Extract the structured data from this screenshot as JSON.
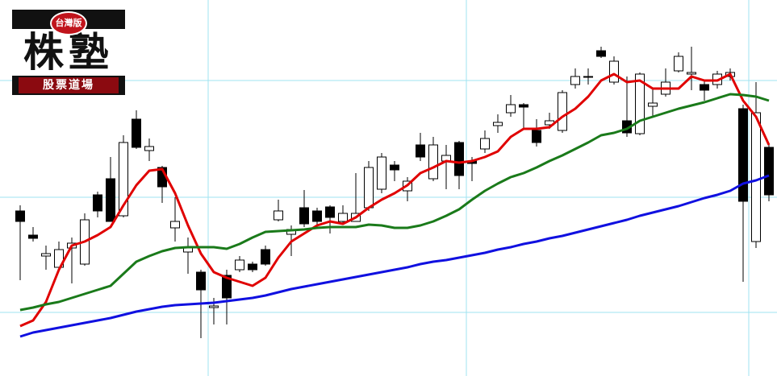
{
  "logo": {
    "badge": "台灣版",
    "title": "株塾",
    "subtitle": "股票道場"
  },
  "chart_data": {
    "type": "candlestick",
    "ylim": [
      0,
      467
    ],
    "up_color": "#ffffff",
    "down_color": "#000000",
    "candles": {
      "open": [
        205,
        175,
        149,
        135,
        159,
        139,
        225,
        245,
        199,
        319,
        280,
        259,
        184,
        154,
        129,
        85,
        125,
        132,
        139,
        157,
        194,
        176,
        209,
        205,
        210,
        192,
        192,
        209,
        232,
        262,
        230,
        287,
        245,
        267,
        290,
        267,
        282,
        311,
        327,
        337,
        305,
        312,
        305,
        362,
        371,
        404,
        365,
        317,
        301,
        335,
        350,
        379,
        375,
        362,
        362,
        372,
        332,
        167,
        284
      ],
      "high": [
        212,
        185,
        162,
        167,
        172,
        202,
        229,
        272,
        299,
        330,
        295,
        261,
        222,
        172,
        132,
        97,
        132,
        149,
        142,
        162,
        219,
        187,
        231,
        209,
        212,
        212,
        252,
        267,
        277,
        267,
        247,
        302,
        297,
        287,
        292,
        272,
        305,
        325,
        349,
        339,
        319,
        327,
        355,
        382,
        382,
        409,
        397,
        372,
        377,
        357,
        382,
        402,
        409,
        367,
        379,
        382,
        337,
        365,
        289
      ],
      "low": [
        119,
        167,
        132,
        132,
        115,
        137,
        197,
        192,
        197,
        282,
        267,
        215,
        167,
        127,
        47,
        64,
        64,
        129,
        129,
        137,
        192,
        149,
        185,
        187,
        177,
        189,
        192,
        205,
        227,
        242,
        217,
        267,
        242,
        232,
        232,
        242,
        277,
        302,
        322,
        307,
        285,
        307,
        302,
        357,
        362,
        395,
        362,
        297,
        299,
        322,
        347,
        377,
        355,
        342,
        357,
        367,
        117,
        159,
        217
      ],
      "close": [
        192,
        171,
        152,
        157,
        165,
        194,
        205,
        192,
        290,
        284,
        285,
        235,
        192,
        160,
        107,
        87,
        97,
        144,
        132,
        139,
        205,
        182,
        189,
        192,
        197,
        202,
        202,
        259,
        272,
        256,
        242,
        272,
        287,
        274,
        249,
        264,
        295,
        315,
        337,
        334,
        290,
        317,
        352,
        372,
        372,
        397,
        391,
        302,
        375,
        339,
        365,
        397,
        377,
        355,
        375,
        377,
        217,
        327,
        225
      ]
    },
    "series": [
      {
        "color": "#e00000",
        "values": [
          62,
          69,
          92,
          132,
          162,
          167,
          175,
          185,
          212,
          237,
          255,
          257,
          227,
          187,
          152,
          129,
          122,
          117,
          112,
          122,
          147,
          167,
          177,
          187,
          192,
          189,
          197,
          209,
          219,
          227,
          237,
          252,
          259,
          267,
          265,
          267,
          272,
          279,
          297,
          307,
          307,
          309,
          322,
          332,
          347,
          367,
          375,
          365,
          367,
          357,
          357,
          357,
          372,
          367,
          367,
          375,
          342,
          322,
          287
        ]
      },
      {
        "color": "#1a7a1a",
        "values": [
          82,
          85,
          89,
          92,
          97,
          102,
          107,
          112,
          127,
          142,
          149,
          155,
          159,
          160,
          160,
          160,
          158,
          164,
          172,
          179,
          180,
          181,
          182,
          184,
          185,
          185,
          185,
          188,
          187,
          184,
          184,
          187,
          192,
          199,
          207,
          219,
          230,
          239,
          247,
          252,
          259,
          267,
          274,
          282,
          290,
          299,
          302,
          307,
          317,
          322,
          327,
          332,
          336,
          340,
          345,
          350,
          349,
          347,
          342
        ]
      },
      {
        "color": "#1010e0",
        "values": [
          49,
          54,
          57,
          60,
          63,
          66,
          69,
          72,
          76,
          80,
          83,
          86,
          88,
          89,
          90,
          91,
          93,
          95,
          97,
          100,
          104,
          108,
          111,
          114,
          117,
          120,
          123,
          126,
          129,
          132,
          135,
          139,
          142,
          144,
          147,
          150,
          153,
          157,
          160,
          164,
          167,
          171,
          174,
          178,
          182,
          186,
          190,
          194,
          199,
          203,
          207,
          211,
          216,
          221,
          225,
          230,
          239,
          243,
          249
        ]
      }
    ]
  }
}
